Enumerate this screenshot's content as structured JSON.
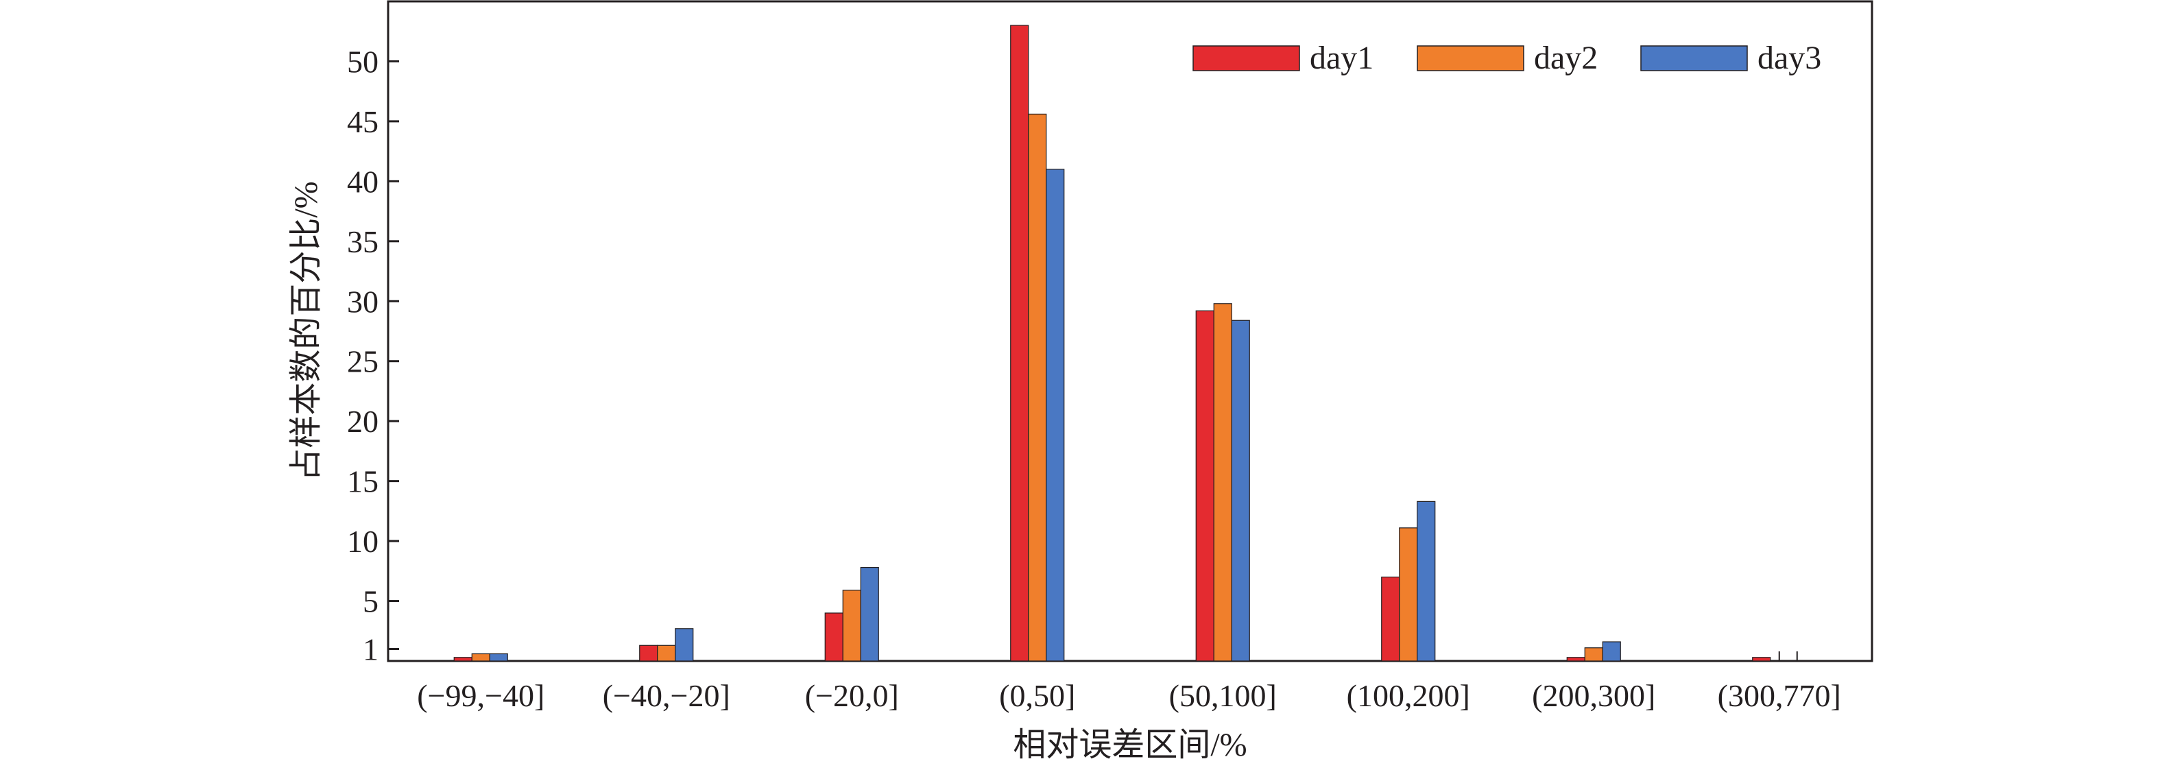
{
  "chart_data": {
    "type": "bar",
    "title": "",
    "xlabel": "相对误差区间/%",
    "ylabel": "占样本数的百分比/%",
    "categories": [
      "(−99,−40]",
      "(−40,−20]",
      "(−20,0]",
      "(0,50]",
      "(50,100]",
      "(100,200]",
      "(200,300]",
      "(300,770]"
    ],
    "series": [
      {
        "name": "day1",
        "color": "#e42b30",
        "values": [
          0.3,
          1.3,
          4.0,
          53.0,
          29.2,
          7.0,
          0.3,
          0.3
        ]
      },
      {
        "name": "day2",
        "color": "#f07f2c",
        "values": [
          0.6,
          1.3,
          5.9,
          45.6,
          29.8,
          11.1,
          1.1,
          0.0
        ]
      },
      {
        "name": "day3",
        "color": "#4a78c3",
        "values": [
          0.6,
          2.7,
          7.8,
          41.0,
          28.4,
          13.3,
          1.6,
          0.0
        ]
      }
    ],
    "yticks": [
      1,
      5,
      10,
      15,
      20,
      25,
      30,
      35,
      40,
      45,
      50
    ],
    "ylim": [
      0,
      55
    ],
    "grid": false,
    "legend": "top-right, horizontal, inside"
  }
}
